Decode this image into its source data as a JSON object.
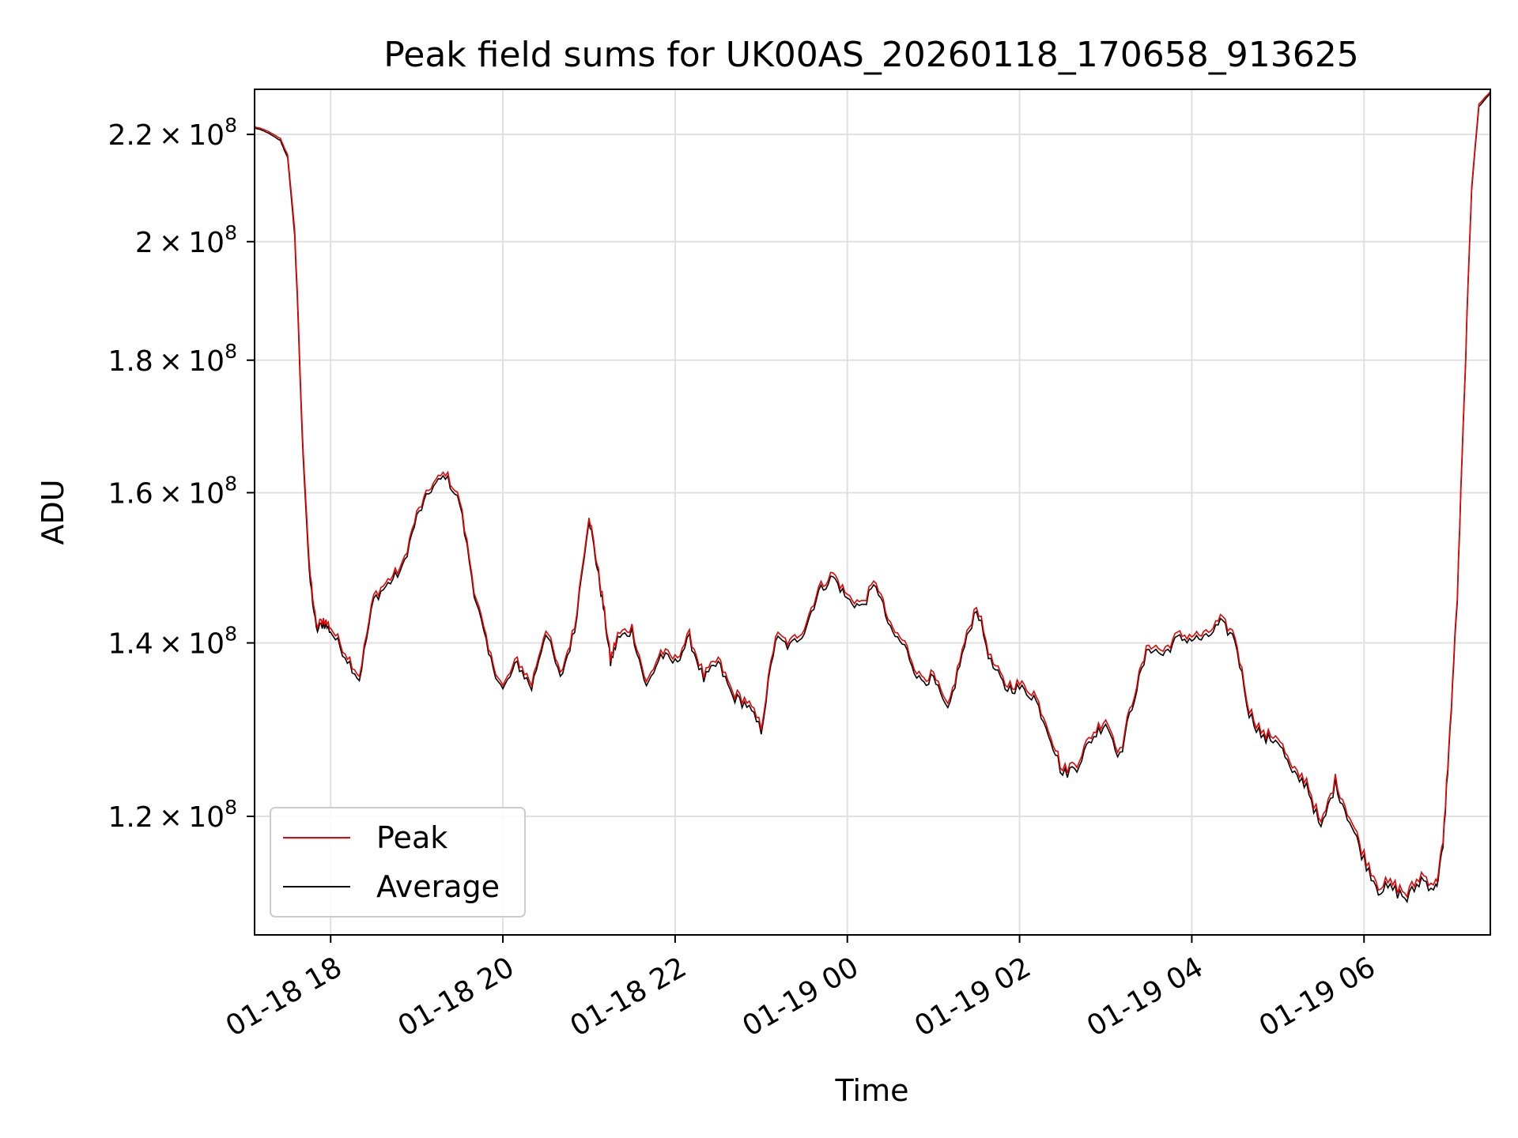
{
  "chart_data": {
    "type": "line",
    "title": "Peak field sums for UK00AS_20260118_170658_913625",
    "xlabel": "Time",
    "ylabel": "ADU",
    "yscale": "log",
    "ylim": [
      108000000,
      229000000
    ],
    "xlim": [
      "2026-01-18 17:07",
      "2026-01-19 07:28"
    ],
    "grid": true,
    "legend_position": "lower-left",
    "x_ticks": [
      {
        "value": "2026-01-18 18:00",
        "label": "01-18 18"
      },
      {
        "value": "2026-01-18 20:00",
        "label": "01-18 20"
      },
      {
        "value": "2026-01-18 22:00",
        "label": "01-18 22"
      },
      {
        "value": "2026-01-19 00:00",
        "label": "01-19 00"
      },
      {
        "value": "2026-01-19 02:00",
        "label": "01-19 02"
      },
      {
        "value": "2026-01-19 04:00",
        "label": "01-19 04"
      },
      {
        "value": "2026-01-19 06:00",
        "label": "01-19 06"
      }
    ],
    "y_ticks": [
      {
        "value": 120000000,
        "mantissa": "1.2",
        "exponent": "8"
      },
      {
        "value": 140000000,
        "mantissa": "1.4",
        "exponent": "8"
      },
      {
        "value": 160000000,
        "mantissa": "1.6",
        "exponent": "8"
      },
      {
        "value": 180000000,
        "mantissa": "1.8",
        "exponent": "8"
      },
      {
        "value": 200000000,
        "mantissa": "2",
        "exponent": "8"
      },
      {
        "value": 220000000,
        "mantissa": "2.2",
        "exponent": "8"
      }
    ],
    "times_prefix": "2026-01-18 ",
    "times_prefix_next": "2026-01-19 ",
    "x": [
      "17:07",
      "17:15",
      "17:25",
      "17:30",
      "17:35",
      "17:40",
      "17:45",
      "17:50",
      "17:55",
      "18:00",
      "18:10",
      "18:20",
      "18:30",
      "18:40",
      "18:50",
      "19:00",
      "19:10",
      "19:20",
      "19:30",
      "19:40",
      "19:50",
      "20:00",
      "20:10",
      "20:20",
      "20:30",
      "20:40",
      "20:50",
      "21:00",
      "21:05",
      "21:10",
      "21:15",
      "21:20",
      "21:30",
      "21:40",
      "21:50",
      "22:00",
      "22:10",
      "22:20",
      "22:30",
      "22:40",
      "22:50",
      "23:00",
      "23:10",
      "23:20",
      "23:30",
      "23:40",
      "23:50",
      "00:00",
      "00:10",
      "00:20",
      "00:30",
      "00:40",
      "00:50",
      "01:00",
      "01:10",
      "01:20",
      "01:30",
      "01:40",
      "01:50",
      "02:00",
      "02:10",
      "02:20",
      "02:30",
      "02:40",
      "02:50",
      "03:00",
      "03:10",
      "03:20",
      "03:30",
      "03:40",
      "03:50",
      "04:00",
      "04:10",
      "04:20",
      "04:30",
      "04:40",
      "04:50",
      "05:00",
      "05:10",
      "05:20",
      "05:30",
      "05:40",
      "05:50",
      "06:00",
      "06:10",
      "06:20",
      "06:30",
      "06:40",
      "06:50",
      "06:55",
      "07:00",
      "07:05",
      "07:10",
      "07:15",
      "07:20",
      "07:28"
    ],
    "series": [
      {
        "name": "Peak",
        "color": "#ee0000",
        "values": [
          221.5,
          220.8,
          219.2,
          216,
          202,
          170,
          150,
          142,
          143,
          142,
          139,
          136,
          146,
          148,
          150,
          157,
          161,
          163,
          159,
          147,
          139,
          134.6,
          138,
          135,
          142,
          136,
          142,
          157,
          151,
          145,
          138,
          141,
          142,
          135,
          139,
          138,
          141,
          136,
          138,
          134,
          133,
          130,
          141,
          140,
          142,
          147,
          149,
          146,
          145,
          148,
          142,
          140,
          136,
          136,
          132,
          139,
          145,
          138,
          135,
          135,
          134,
          130,
          125,
          126,
          129,
          131,
          127,
          134,
          140,
          139,
          141,
          141,
          141,
          143,
          141,
          132,
          129,
          129,
          125,
          124,
          119,
          124,
          120,
          116,
          113,
          113,
          112,
          114,
          113,
          117,
          130,
          146,
          175,
          210,
          226,
          228.5
        ]
      },
      {
        "name": "Average",
        "color": "#000000",
        "values": [
          221.3,
          220.5,
          218.8,
          215.5,
          201,
          169,
          149,
          141.5,
          142.5,
          141.5,
          138.5,
          135.5,
          145.5,
          147.5,
          149.5,
          156.5,
          160.5,
          162.5,
          158.5,
          146.5,
          138.5,
          134.2,
          137.5,
          134.5,
          141.5,
          135.5,
          141.5,
          156.5,
          150.5,
          144.5,
          137.5,
          140.5,
          141.5,
          134.5,
          138.5,
          137.5,
          140.5,
          135.5,
          137.5,
          133.5,
          132.5,
          129.5,
          140.5,
          139.5,
          141.5,
          146.5,
          148.5,
          145.5,
          144.5,
          147.5,
          141.5,
          139.5,
          135.5,
          135.5,
          131.5,
          138.5,
          144.5,
          137.5,
          134.5,
          134.5,
          133.5,
          129.5,
          124.5,
          125.5,
          128.5,
          130.5,
          126.5,
          133.5,
          139.5,
          138.5,
          140.5,
          140.5,
          140.5,
          142.5,
          140.5,
          131.5,
          128.5,
          128.5,
          124.5,
          123.5,
          118.5,
          123.5,
          119.5,
          115.5,
          112.5,
          112.5,
          111.5,
          113.5,
          112.5,
          116.5,
          129.5,
          145.5,
          174.5,
          209.5,
          225.5,
          228.2
        ]
      }
    ],
    "value_unit_multiplier": 1000000,
    "legend": [
      {
        "label": "Peak",
        "color": "#ee0000"
      },
      {
        "label": "Average",
        "color": "#000000"
      }
    ]
  }
}
